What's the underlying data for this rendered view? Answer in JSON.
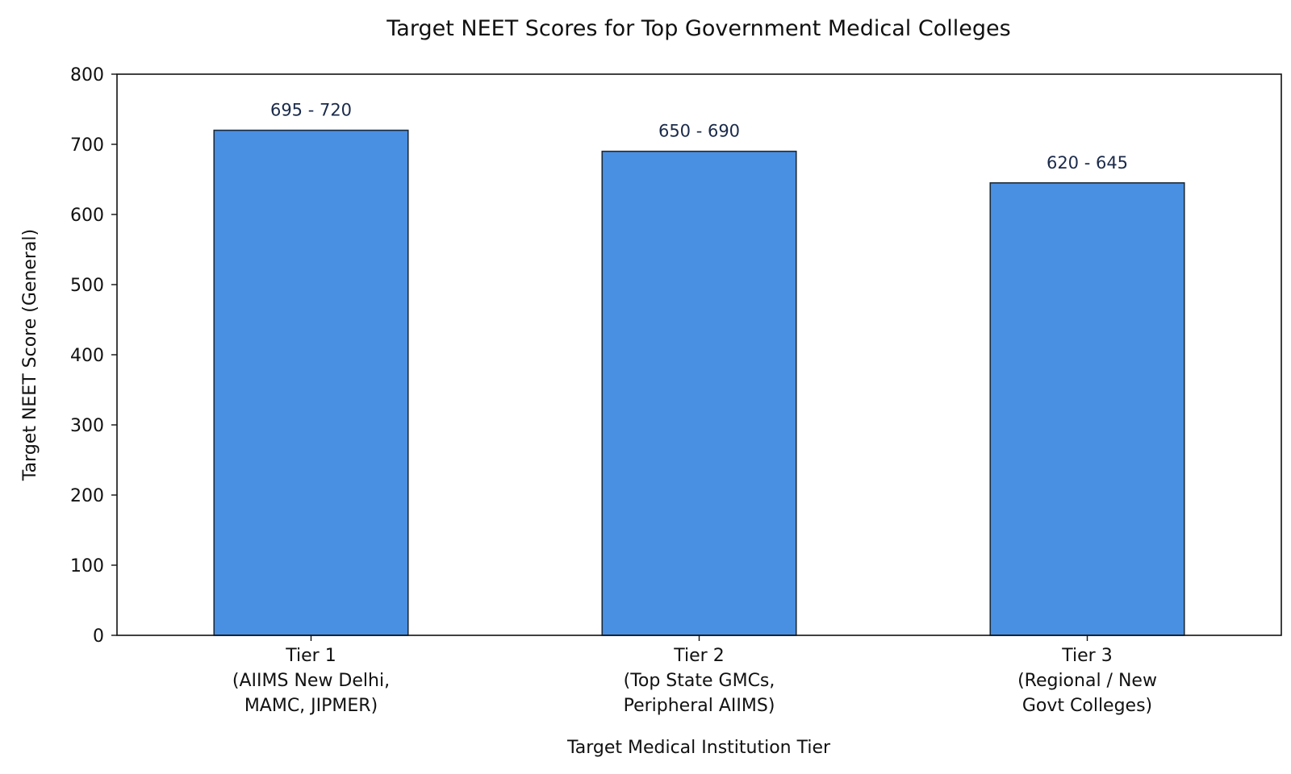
{
  "chart_data": {
    "type": "bar",
    "title": "Target NEET Scores for Top Government Medical Colleges",
    "xlabel": "Target Medical Institution Tier",
    "ylabel": "Target NEET Score (General)",
    "ylim": [
      0,
      800
    ],
    "yticks": [
      0,
      100,
      200,
      300,
      400,
      500,
      600,
      700,
      800
    ],
    "grid": false,
    "bar_color": "#4a90e2",
    "bar_edge_color": "#1a2a3a",
    "categories": [
      [
        "Tier 1",
        "(AIIMS New Delhi,",
        "MAMC, JIPMER)"
      ],
      [
        "Tier 2",
        "(Top State GMCs,",
        "Peripheral AIIMS)"
      ],
      [
        "Tier 3",
        "(Regional / New",
        "Govt Colleges)"
      ]
    ],
    "values": [
      720,
      690,
      645
    ],
    "data_labels": [
      "695 - 720",
      "650 - 690",
      "620 - 645"
    ]
  }
}
